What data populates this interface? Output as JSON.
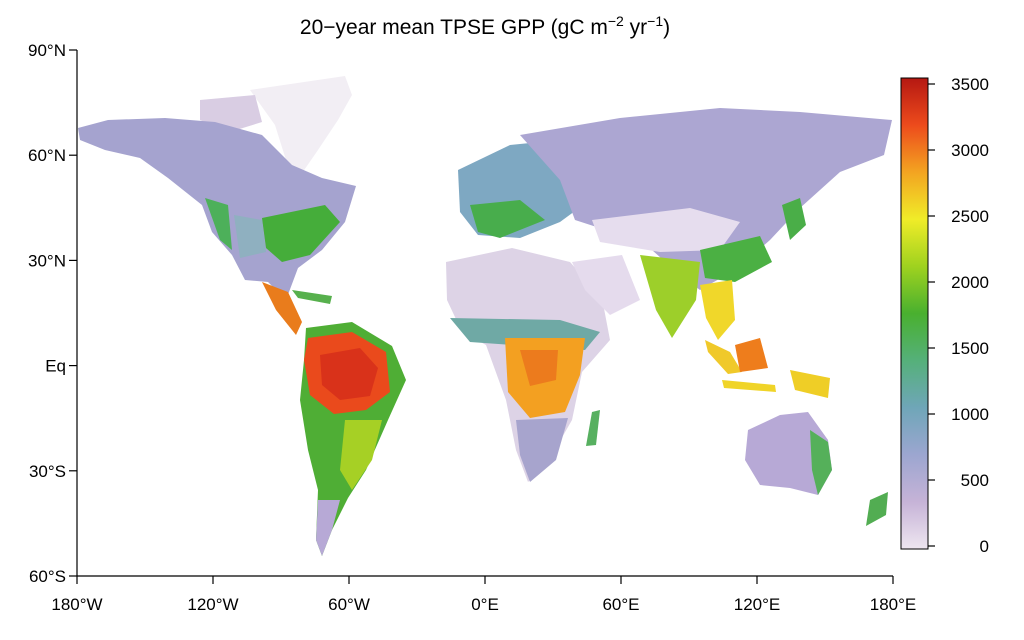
{
  "title": {
    "main": "20−year mean TPSE GPP (gC m",
    "exp1": "−2",
    "mid": " yr",
    "exp2": "−1",
    "end": ")"
  },
  "map": {
    "lon_range": [
      -180,
      180
    ],
    "lat_range": [
      -60,
      90
    ],
    "x_ticks": [
      {
        "value": -180,
        "label": "180°W"
      },
      {
        "value": -120,
        "label": "120°W"
      },
      {
        "value": -60,
        "label": "60°W"
      },
      {
        "value": 0,
        "label": "0°E"
      },
      {
        "value": 60,
        "label": "60°E"
      },
      {
        "value": 120,
        "label": "120°E"
      },
      {
        "value": 180,
        "label": "180°E"
      }
    ],
    "y_ticks": [
      {
        "value": 90,
        "label": "90°N"
      },
      {
        "value": 60,
        "label": "60°N"
      },
      {
        "value": 30,
        "label": "30°N"
      },
      {
        "value": 0,
        "label": "Eq"
      },
      {
        "value": -30,
        "label": "30°S"
      },
      {
        "value": -60,
        "label": "60°S"
      }
    ],
    "regions": [
      {
        "name": "arctic-tundra",
        "value": 450
      },
      {
        "name": "boreal-forest",
        "value": 800
      },
      {
        "name": "temperate-forest",
        "value": 1500
      },
      {
        "name": "desert",
        "value": 100
      },
      {
        "name": "savanna",
        "value": 1200
      },
      {
        "name": "amazon-rainforest",
        "value": 3300
      },
      {
        "name": "congo-rainforest",
        "value": 2700
      },
      {
        "name": "southeast-asia-tropics",
        "value": 2400
      },
      {
        "name": "australia-interior",
        "value": 450
      }
    ]
  },
  "colorbar": {
    "min": 0,
    "max": 3500,
    "ticks": [
      {
        "value": 3500,
        "label": "3500"
      },
      {
        "value": 3000,
        "label": "3000"
      },
      {
        "value": 2500,
        "label": "2500"
      },
      {
        "value": 2000,
        "label": "2000"
      },
      {
        "value": 1500,
        "label": "1500"
      },
      {
        "value": 1000,
        "label": "1000"
      },
      {
        "value": 500,
        "label": "500"
      },
      {
        "value": 0,
        "label": "0"
      }
    ],
    "colors": [
      "#eee6f0",
      "#c6b3d7",
      "#9ca6d0",
      "#6fa6b8",
      "#55b07a",
      "#49b02f",
      "#9fd21f",
      "#f0ec28",
      "#f3a421",
      "#ed4b1c",
      "#b51812"
    ]
  }
}
